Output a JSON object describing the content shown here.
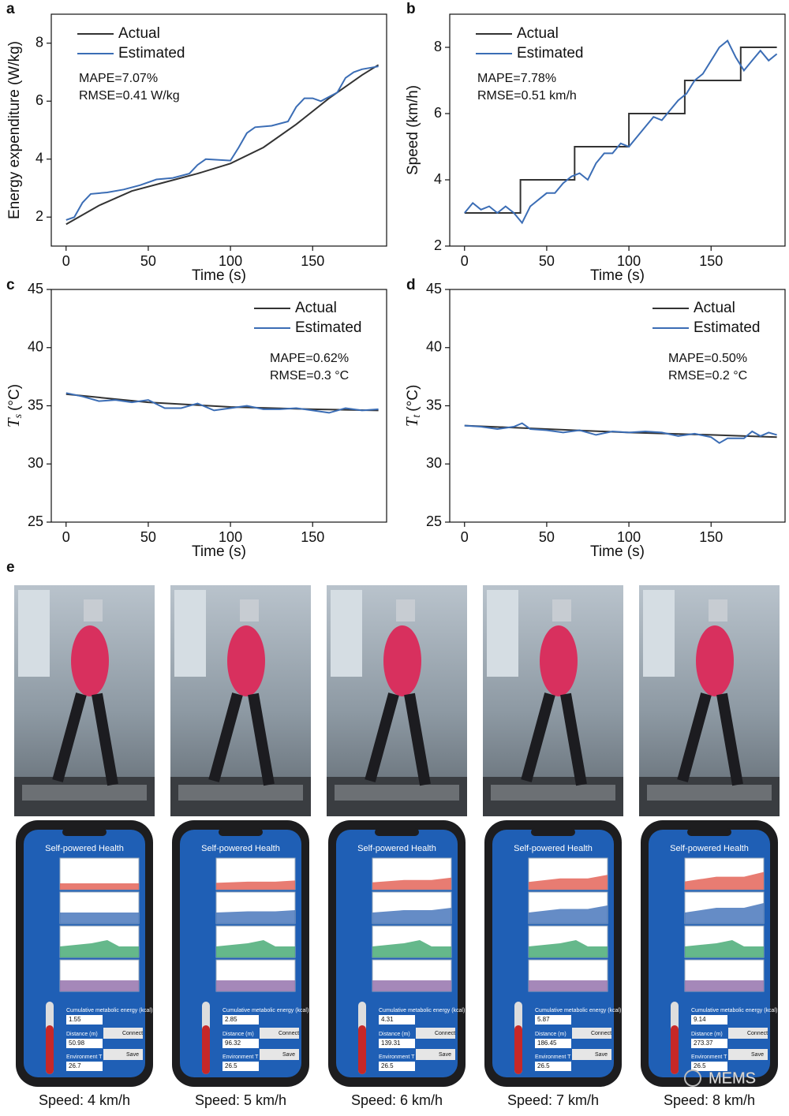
{
  "chart_data": [
    {
      "type": "line",
      "panel": "a",
      "xlabel": "Time (s)",
      "ylabel": "Energy expenditure (W/kg)",
      "xlim": [
        -9,
        195
      ],
      "xticks": [
        0,
        50,
        100,
        150
      ],
      "ylim": [
        1,
        9
      ],
      "yticks": [
        2,
        4,
        6,
        8
      ],
      "legend": "upper left",
      "annotations": [
        "MAPE=7.07%",
        "RMSE=0.41 W/kg"
      ],
      "series": [
        {
          "name": "Actual",
          "color": "#333333",
          "x": [
            0,
            20,
            40,
            60,
            80,
            100,
            120,
            140,
            160,
            180,
            190
          ],
          "values": [
            1.75,
            2.4,
            2.9,
            3.2,
            3.5,
            3.85,
            4.4,
            5.2,
            6.1,
            6.9,
            7.25
          ]
        },
        {
          "name": "Estimated",
          "color": "#3b6db5",
          "x": [
            0,
            5,
            10,
            15,
            25,
            35,
            45,
            55,
            65,
            75,
            80,
            85,
            100,
            105,
            110,
            115,
            125,
            135,
            140,
            145,
            150,
            155,
            165,
            170,
            175,
            180,
            190
          ],
          "values": [
            1.9,
            2.0,
            2.5,
            2.8,
            2.85,
            2.95,
            3.1,
            3.3,
            3.35,
            3.5,
            3.8,
            4.0,
            3.95,
            4.4,
            4.9,
            5.1,
            5.15,
            5.3,
            5.8,
            6.1,
            6.1,
            6.0,
            6.3,
            6.8,
            7.0,
            7.1,
            7.2
          ]
        }
      ]
    },
    {
      "type": "line",
      "panel": "b",
      "xlabel": "Time (s)",
      "ylabel": "Speed (km/h)",
      "xlim": [
        -9,
        195
      ],
      "xticks": [
        0,
        50,
        100,
        150
      ],
      "ylim": [
        2,
        9
      ],
      "yticks": [
        2,
        4,
        6,
        8
      ],
      "legend": "upper left",
      "annotations": [
        "MAPE=7.78%",
        "RMSE=0.51 km/h"
      ],
      "series": [
        {
          "name": "Actual",
          "color": "#333333",
          "x": [
            0,
            34,
            34,
            67,
            67,
            100,
            100,
            134,
            134,
            168,
            168,
            190
          ],
          "values": [
            3,
            3,
            4,
            4,
            5,
            5,
            6,
            6,
            7,
            7,
            8,
            8
          ]
        },
        {
          "name": "Estimated",
          "color": "#3b6db5",
          "x": [
            0,
            5,
            10,
            15,
            20,
            25,
            30,
            35,
            40,
            45,
            50,
            55,
            60,
            65,
            70,
            75,
            80,
            85,
            90,
            95,
            100,
            105,
            110,
            115,
            120,
            125,
            130,
            135,
            140,
            145,
            150,
            155,
            160,
            165,
            170,
            175,
            180,
            185,
            190
          ],
          "values": [
            3.0,
            3.3,
            3.1,
            3.2,
            3.0,
            3.2,
            3.0,
            2.7,
            3.2,
            3.4,
            3.6,
            3.6,
            3.9,
            4.1,
            4.2,
            4.0,
            4.5,
            4.8,
            4.8,
            5.1,
            5.0,
            5.3,
            5.6,
            5.9,
            5.8,
            6.1,
            6.4,
            6.6,
            7.0,
            7.2,
            7.6,
            8.0,
            8.2,
            7.7,
            7.3,
            7.6,
            7.9,
            7.6,
            7.8
          ]
        }
      ]
    },
    {
      "type": "line",
      "panel": "c",
      "xlabel": "Time (s)",
      "ylabel": {
        "symbol": "T",
        "subscript": "s",
        "unit": "(°C)"
      },
      "xlim": [
        -9,
        195
      ],
      "xticks": [
        0,
        50,
        100,
        150
      ],
      "ylim": [
        25,
        45
      ],
      "yticks": [
        25,
        30,
        35,
        40,
        45
      ],
      "legend": "upper right",
      "annotations": [
        "MAPE=0.62%",
        "RMSE=0.3 °C"
      ],
      "series": [
        {
          "name": "Actual",
          "color": "#333333",
          "x": [
            0,
            50,
            100,
            150,
            190
          ],
          "values": [
            36.0,
            35.3,
            34.9,
            34.7,
            34.6
          ]
        },
        {
          "name": "Estimated",
          "color": "#3b6db5",
          "x": [
            0,
            10,
            20,
            30,
            40,
            50,
            60,
            70,
            80,
            90,
            100,
            110,
            120,
            130,
            140,
            150,
            160,
            170,
            180,
            190
          ],
          "values": [
            36.1,
            35.8,
            35.4,
            35.5,
            35.3,
            35.5,
            34.8,
            34.8,
            35.2,
            34.6,
            34.8,
            35.0,
            34.7,
            34.7,
            34.8,
            34.6,
            34.4,
            34.8,
            34.6,
            34.7
          ]
        }
      ]
    },
    {
      "type": "line",
      "panel": "d",
      "xlabel": "Time (s)",
      "ylabel": {
        "symbol": "T",
        "subscript": "t",
        "unit": "(°C)"
      },
      "xlim": [
        -9,
        195
      ],
      "xticks": [
        0,
        50,
        100,
        150
      ],
      "ylim": [
        25,
        45
      ],
      "yticks": [
        25,
        30,
        35,
        40,
        45
      ],
      "legend": "upper right",
      "annotations": [
        "MAPE=0.50%",
        "RMSE=0.2 °C"
      ],
      "series": [
        {
          "name": "Actual",
          "color": "#333333",
          "x": [
            0,
            50,
            100,
            150,
            190
          ],
          "values": [
            33.3,
            33.0,
            32.7,
            32.5,
            32.3
          ]
        },
        {
          "name": "Estimated",
          "color": "#3b6db5",
          "x": [
            0,
            10,
            20,
            30,
            35,
            40,
            50,
            60,
            70,
            80,
            90,
            100,
            110,
            120,
            130,
            140,
            150,
            155,
            160,
            170,
            175,
            180,
            185,
            190
          ],
          "values": [
            33.3,
            33.2,
            33.0,
            33.2,
            33.5,
            33.0,
            32.9,
            32.7,
            32.9,
            32.5,
            32.8,
            32.7,
            32.8,
            32.7,
            32.4,
            32.6,
            32.3,
            31.8,
            32.2,
            32.2,
            32.8,
            32.4,
            32.7,
            32.5
          ]
        }
      ]
    }
  ],
  "panel_e": {
    "label": "e",
    "app_title": "Self-powered Health",
    "energy_label": "Cumulative metabolic energy (kcal)",
    "distance_label": "Distance (m)",
    "temp_label": "Environment T (°C)",
    "connect": "Connect",
    "save": "Save",
    "columns": [
      {
        "caption": "Speed: 4 km/h",
        "energy": "1.55",
        "distance": "50.98",
        "temp": "26.7"
      },
      {
        "caption": "Speed: 5 km/h",
        "energy": "2.85",
        "distance": "96.32",
        "temp": "26.5"
      },
      {
        "caption": "Speed: 6 km/h",
        "energy": "4.31",
        "distance": "139.31",
        "temp": "26.5"
      },
      {
        "caption": "Speed: 7 km/h",
        "energy": "5.87",
        "distance": "186.45",
        "temp": "26.5"
      },
      {
        "caption": "Speed: 8 km/h",
        "energy": "9.14",
        "distance": "273.37",
        "temp": "26.5"
      }
    ]
  },
  "watermark": "MEMS"
}
